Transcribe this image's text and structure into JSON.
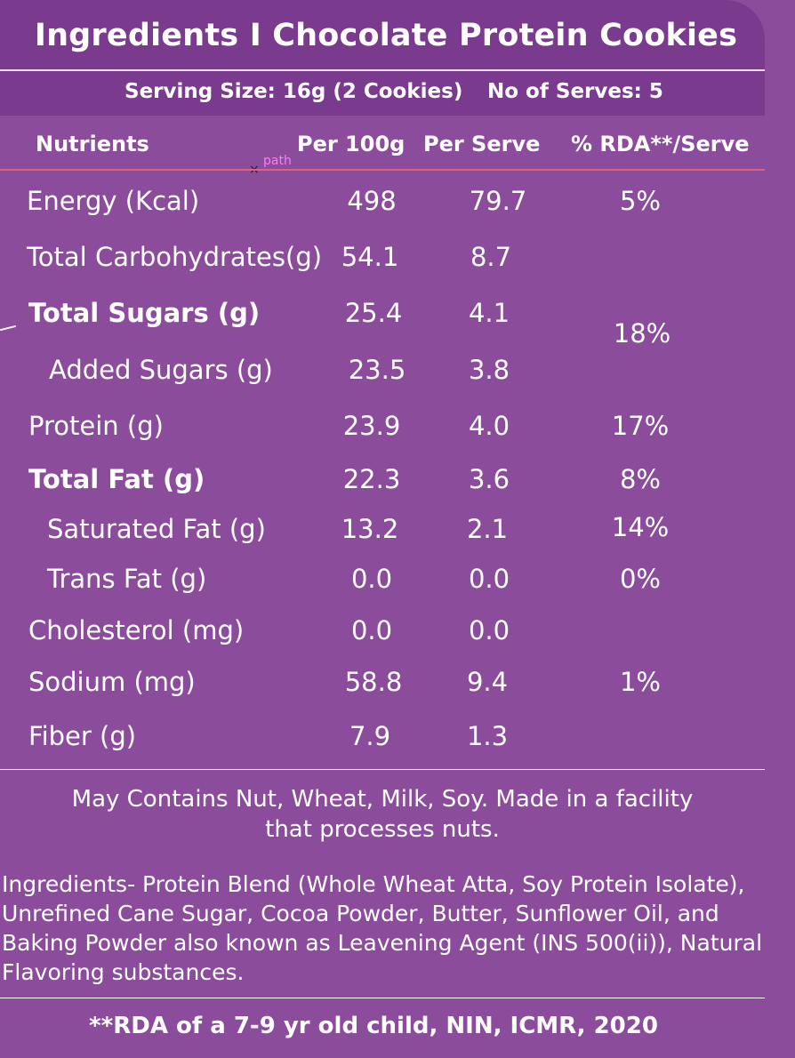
{
  "title": "Ingredients I Chocolate Protein Cookies",
  "serving": {
    "size": "Serving Size: 16g (2 Cookies)",
    "count": "No of Serves: 5"
  },
  "annotation": "path",
  "columns": {
    "nutrient": "Nutrients",
    "per100": "Per 100g",
    "perServe": "Per Serve",
    "rda": "% RDA**/Serve"
  },
  "rows": [
    {
      "name": "Energy (Kcal)",
      "per100": "498",
      "perServe": "79.7",
      "rda": "5%"
    },
    {
      "name": "Total Carbohydrates(g)",
      "per100": "54.1",
      "perServe": "8.7",
      "rda": ""
    },
    {
      "name": "Total Sugars (g)",
      "per100": "25.4",
      "perServe": "4.1",
      "rda": ""
    },
    {
      "name": "Added Sugars (g)",
      "per100": "23.5",
      "perServe": "3.8",
      "rda": ""
    },
    {
      "name": "Protein (g)",
      "per100": "23.9",
      "perServe": "4.0",
      "rda": "17%"
    },
    {
      "name": "Total Fat (g)",
      "per100": "22.3",
      "perServe": "3.6",
      "rda": "8%"
    },
    {
      "name": "Saturated Fat (g)",
      "per100": "13.2",
      "perServe": "2.1",
      "rda": "14%"
    },
    {
      "name": "Trans Fat (g)",
      "per100": "0.0",
      "perServe": "0.0",
      "rda": "0%"
    },
    {
      "name": "Cholesterol (mg)",
      "per100": "0.0",
      "perServe": "0.0",
      "rda": ""
    },
    {
      "name": "Sodium (mg)",
      "per100": "58.8",
      "perServe": "9.4",
      "rda": "1%"
    },
    {
      "name": "Fiber (g)",
      "per100": "7.9",
      "perServe": "1.3",
      "rda": ""
    }
  ],
  "sugarsRda": "18%",
  "allergen": {
    "line1": "May Contains Nut, Wheat, Milk, Soy. Made in a facility",
    "line2": "that processes nuts."
  },
  "ingredients": {
    "line1": "Ingredients- Protein Blend (Whole Wheat Atta, Soy Protein Isolate),",
    "line2": "Unrefined Cane Sugar, Cocoa Powder, Butter, Sunflower Oil, and",
    "line3": "Baking Powder also known as Leavening Agent (INS 500(ii)), Natural",
    "line4": "Flavoring substances."
  },
  "footer": "**RDA of a 7-9 yr old child, NIN, ICMR, 2020",
  "colors": {
    "background": "#8b4c9c",
    "headerBand": "#7a3a8e",
    "headerRule": "#e0607e",
    "annotation": "#ff79ff"
  }
}
